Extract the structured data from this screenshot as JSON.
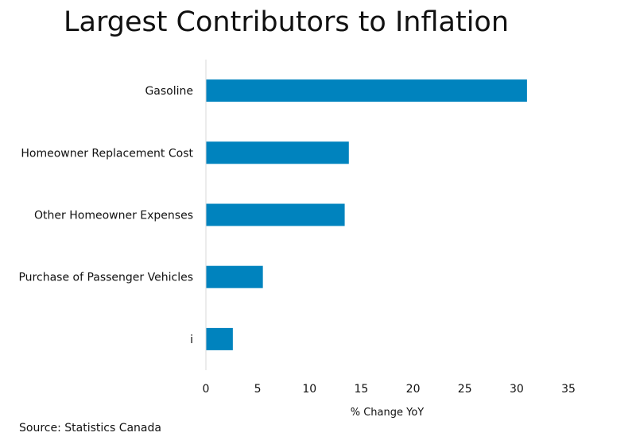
{
  "chart_data": {
    "type": "bar",
    "orientation": "horizontal",
    "title": "Largest Contributors to Inflation",
    "categories": [
      "Gasoline",
      "Homeowner Replacement Cost",
      "Other Homeowner Expenses",
      "Purchase of Passenger Vehicles",
      "i"
    ],
    "values": [
      31,
      13.8,
      13.4,
      5.5,
      2.6
    ],
    "xlabel": "% Change YoY",
    "ylabel": "",
    "xlim": [
      0,
      35
    ],
    "xticks": [
      0,
      5,
      10,
      15,
      20,
      25,
      30,
      35
    ],
    "grid": false,
    "legend": "none",
    "bar_color": "#0083BE",
    "axis_color": "#D9D9D9"
  },
  "source": "Source: Statistics Canada"
}
